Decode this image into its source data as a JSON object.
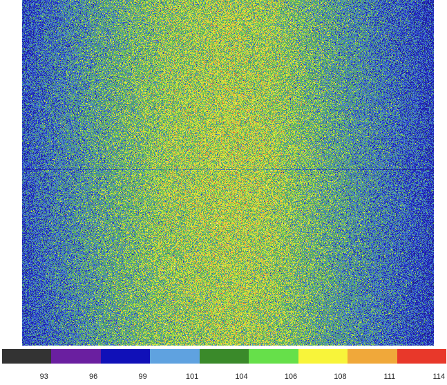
{
  "chart_data": {
    "type": "heatmap",
    "title": "",
    "xlabel": "",
    "ylabel": "",
    "value_range": [
      92,
      116
    ],
    "noise": "high, per-pixel speckle",
    "column_profile": {
      "positions": [
        0.0,
        0.08,
        0.2,
        0.35,
        0.5,
        0.6,
        0.7,
        0.82,
        0.92,
        1.0
      ],
      "mean_values": [
        99,
        101,
        103.5,
        106,
        107,
        106.5,
        104.5,
        102,
        100,
        98
      ]
    },
    "horizontal_seam_at_fraction": 0.49,
    "colorbar": {
      "orientation": "horizontal",
      "placement": "bottom",
      "colors": [
        "#333333",
        "#6a1fa0",
        "#1010b8",
        "#5fa2e0",
        "#3a8a2a",
        "#66e04a",
        "#f8f43a",
        "#f0a83a",
        "#e8382a"
      ],
      "tick_labels": [
        "93",
        "96",
        "99",
        "101",
        "104",
        "106",
        "108",
        "111",
        "114"
      ]
    }
  }
}
